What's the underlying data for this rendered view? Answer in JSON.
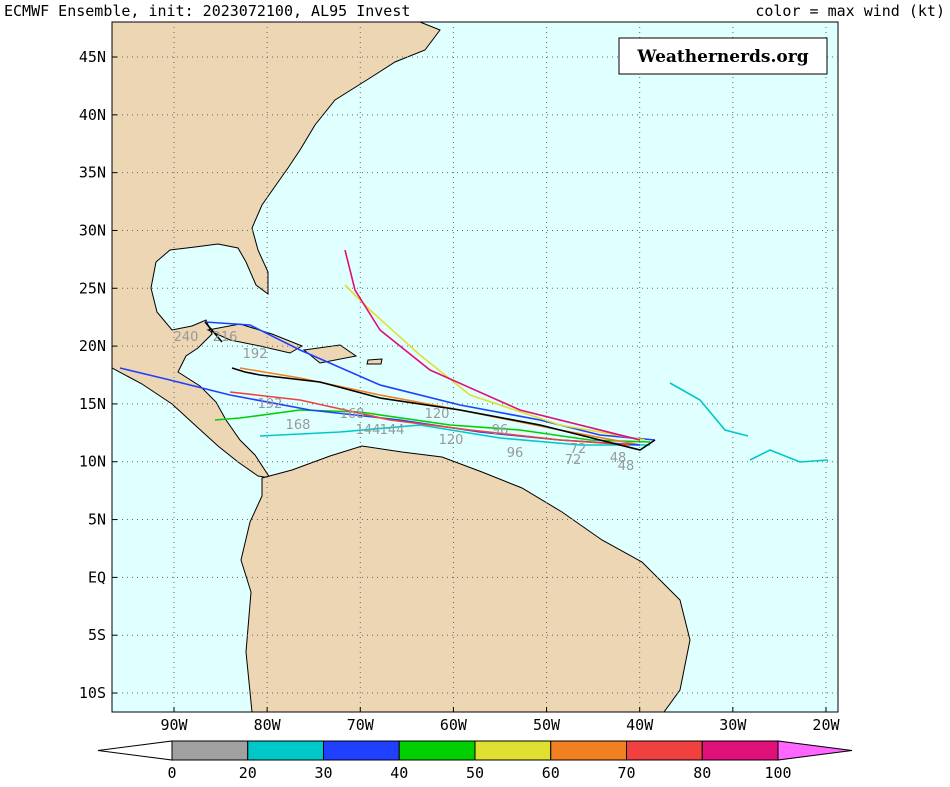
{
  "header": {
    "title": "ECMWF Ensemble, init: 2023072100, AL95 Invest",
    "color_note": "color = max wind (kt)"
  },
  "watermark": "Weathernerds.org",
  "axes": {
    "lon_ticks": [
      {
        "value": -90,
        "label": "90W"
      },
      {
        "value": -80,
        "label": "80W"
      },
      {
        "value": -70,
        "label": "70W"
      },
      {
        "value": -60,
        "label": "60W"
      },
      {
        "value": -50,
        "label": "50W"
      },
      {
        "value": -40,
        "label": "40W"
      },
      {
        "value": -30,
        "label": "30W"
      },
      {
        "value": -20,
        "label": "20W"
      }
    ],
    "lat_ticks": [
      {
        "value": 45,
        "label": "45N"
      },
      {
        "value": 40,
        "label": "40N"
      },
      {
        "value": 35,
        "label": "35N"
      },
      {
        "value": 30,
        "label": "30N"
      },
      {
        "value": 25,
        "label": "25N"
      },
      {
        "value": 20,
        "label": "20N"
      },
      {
        "value": 15,
        "label": "15N"
      },
      {
        "value": 10,
        "label": "10N"
      },
      {
        "value": 5,
        "label": "5N"
      },
      {
        "value": 0,
        "label": "EQ"
      },
      {
        "value": -5,
        "label": "5S"
      },
      {
        "value": -10,
        "label": "10S"
      }
    ]
  },
  "colorbar": {
    "ticks": [
      0,
      20,
      30,
      40,
      50,
      60,
      70,
      80,
      100
    ],
    "colors": [
      "#a0a0a0",
      "#00c8c8",
      "#2040ff",
      "#00d000",
      "#e0e030",
      "#f08020",
      "#f04040",
      "#e0107a"
    ],
    "over_color": "#ff66ff",
    "under_color": "#ffffff"
  },
  "track_labels": [
    "240",
    "216",
    "192",
    "192",
    "168",
    "168",
    "144",
    "144",
    "120",
    "120",
    "96",
    "96",
    "72",
    "72",
    "48",
    "48"
  ]
}
